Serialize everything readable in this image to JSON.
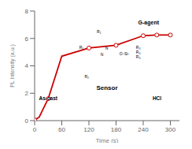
{
  "chart_data": {
    "type": "line",
    "x": [
      0,
      10,
      30,
      60,
      120,
      180,
      240,
      270,
      300
    ],
    "series": [
      {
        "type": "line",
        "color": "#cc0000",
        "values": [
          0.05,
          0.25,
          1.6,
          4.7,
          5.3,
          5.5,
          6.2,
          6.25,
          6.25
        ]
      },
      {
        "type": "scatter",
        "color": "#cc0000",
        "marker": "circle",
        "values": [
          0.05,
          null,
          1.6,
          null,
          5.3,
          5.5,
          6.2,
          6.25,
          6.25
        ]
      }
    ],
    "xlabel": "Time (s)",
    "ylabel": "PL Intensity (a.u.)",
    "xlim": [
      0,
      320
    ],
    "ylim": [
      0,
      8
    ],
    "xticks": [
      0,
      60,
      120,
      180,
      240,
      300
    ],
    "yticks": [
      0,
      2,
      4,
      6,
      8
    ],
    "grid": false,
    "annotations": [
      "N",
      "N",
      "O",
      "-Si-",
      "R₃",
      "R₄",
      "R₃",
      "R₁",
      "R₁",
      "R₂",
      "Sensor",
      "As-cast",
      "HCl",
      "G-agent"
    ]
  }
}
